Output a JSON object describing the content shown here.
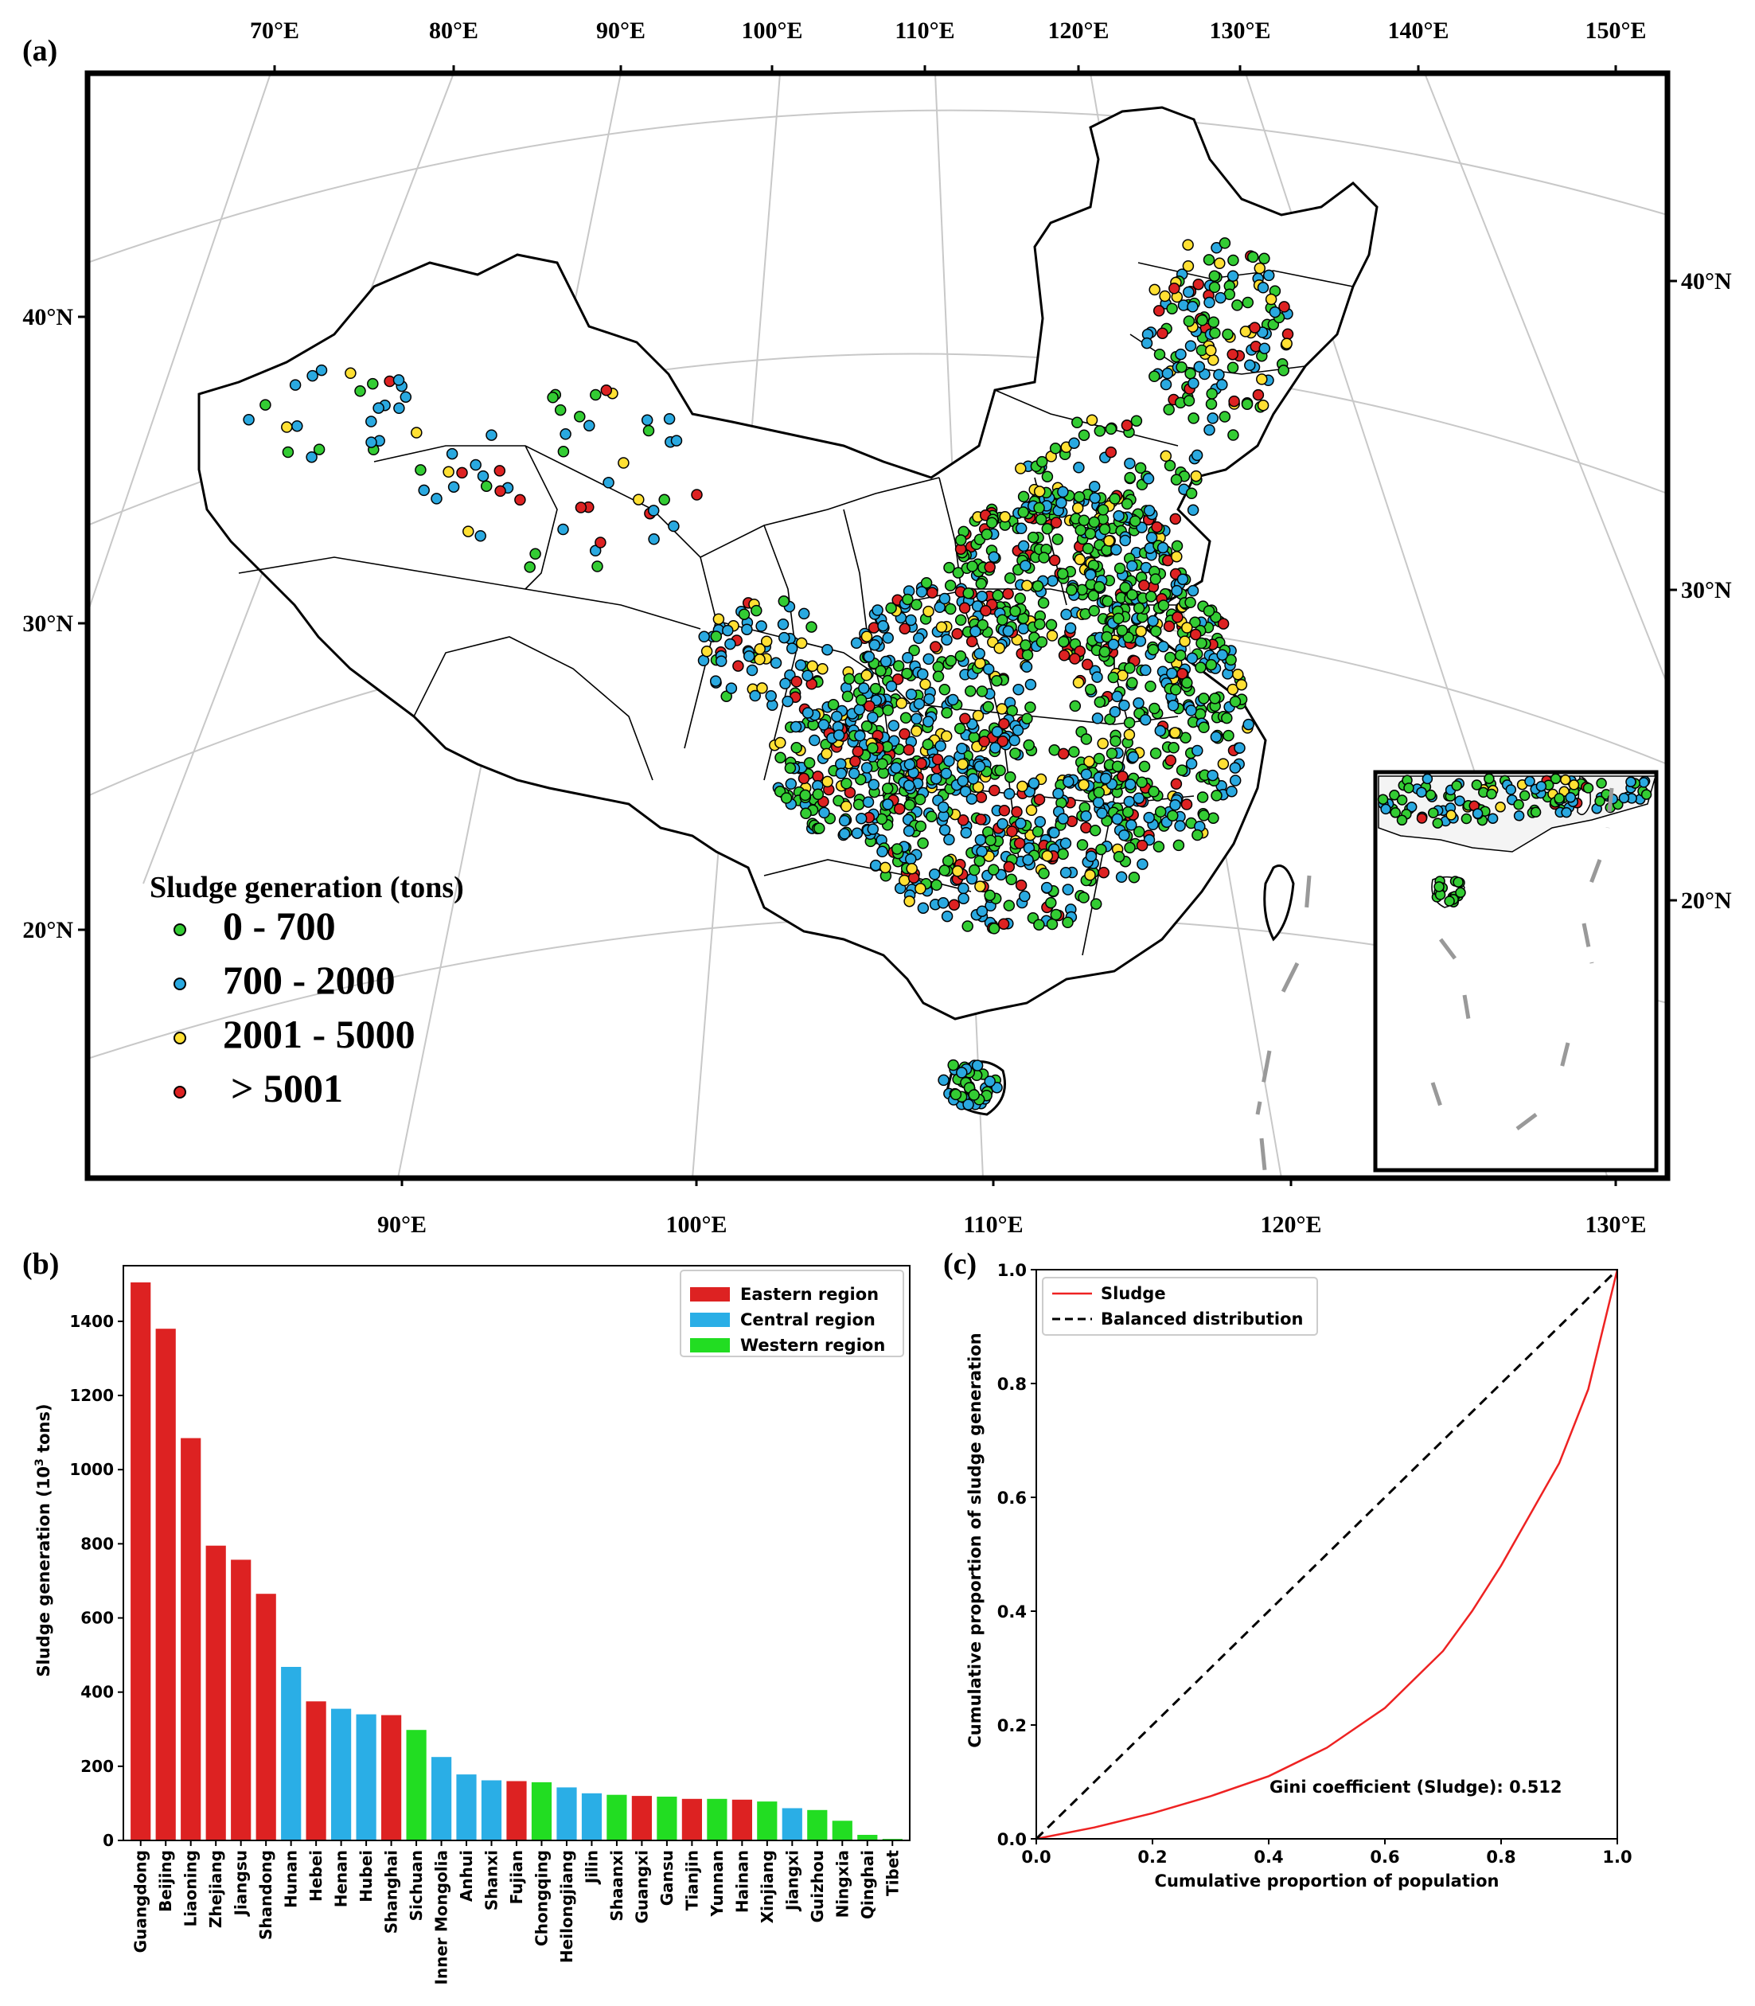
{
  "panel_a": {
    "label": "(a)",
    "top_lon_ticks": [
      "70°E",
      "80°E",
      "90°E",
      "100°E",
      "110°E",
      "120°E",
      "130°E",
      "140°E",
      "150°E"
    ],
    "bottom_lon_ticks": [
      "90°E",
      "100°E",
      "110°E",
      "120°E",
      "130°E"
    ],
    "left_lat_ticks": [
      "40°N",
      "30°N",
      "20°N"
    ],
    "right_lat_ticks": [
      "40°N",
      "30°N",
      "20°N"
    ],
    "legend": {
      "title": "Sludge generation  (tons)",
      "items": [
        {
          "label": "0 - 700",
          "color": "#33cc33"
        },
        {
          "label": "700 - 2000",
          "color": "#2aa9e0"
        },
        {
          "label": "2001 - 5000",
          "color": "#ffe033"
        },
        {
          "label": "> 5001",
          "color": "#dd2222"
        }
      ]
    }
  },
  "panel_b": {
    "label": "(b)",
    "ylabel": "Sludge generation (10³ tons)",
    "legend": [
      {
        "label": "Eastern region",
        "color": "#dd2222"
      },
      {
        "label": "Central region",
        "color": "#2aaee6"
      },
      {
        "label": "Western region",
        "color": "#22dd22"
      }
    ]
  },
  "panel_c": {
    "label": "(c)",
    "xlabel": "Cumulative proportion of population",
    "ylabel": "Cumulative proportion of sludge generation",
    "legend": [
      {
        "label": "Sludge",
        "color": "#ee2222"
      },
      {
        "label": "Balanced distribution",
        "color": "#000000"
      }
    ],
    "annotation": "Gini coefficient (Sludge): 0.512"
  },
  "chart_data": [
    {
      "type": "bar",
      "ylabel": "Sludge generation (10³ tons)",
      "ylim": [
        0,
        1550
      ],
      "yticks": [
        0,
        200,
        400,
        600,
        800,
        1000,
        1200,
        1400
      ],
      "categories": [
        "Guangdong",
        "Beijing",
        "Liaoning",
        "Zhejiang",
        "Jiangsu",
        "Shandong",
        "Hunan",
        "Hebei",
        "Henan",
        "Hubei",
        "Shanghai",
        "Sichuan",
        "Inner Mongolia",
        "Anhui",
        "Shanxi",
        "Fujian",
        "Chongqing",
        "Heilongjiang",
        "Jilin",
        "Shaanxi",
        "Guangxi",
        "Gansu",
        "Tianjin",
        "Yunnan",
        "Hainan",
        "Xinjiang",
        "Jiangxi",
        "Guizhou",
        "Ningxia",
        "Qinghai",
        "Tibet"
      ],
      "values": [
        1505,
        1380,
        1085,
        795,
        757,
        665,
        468,
        375,
        355,
        340,
        338,
        298,
        225,
        178,
        162,
        160,
        157,
        143,
        127,
        123,
        120,
        118,
        112,
        112,
        110,
        105,
        87,
        82,
        53,
        15,
        4
      ],
      "region": [
        "Eastern",
        "Eastern",
        "Eastern",
        "Eastern",
        "Eastern",
        "Eastern",
        "Central",
        "Eastern",
        "Central",
        "Central",
        "Eastern",
        "Western",
        "Central",
        "Central",
        "Central",
        "Eastern",
        "Western",
        "Central",
        "Central",
        "Western",
        "Eastern",
        "Western",
        "Eastern",
        "Western",
        "Eastern",
        "Western",
        "Central",
        "Western",
        "Western",
        "Western",
        "Western"
      ],
      "legend_position": "upper-right"
    },
    {
      "type": "line",
      "xlabel": "Cumulative proportion of population",
      "ylabel": "Cumulative proportion of sludge generation",
      "xlim": [
        0,
        1
      ],
      "ylim": [
        0,
        1
      ],
      "ticks": [
        0.0,
        0.2,
        0.4,
        0.6,
        0.8,
        1.0
      ],
      "series": [
        {
          "name": "Sludge",
          "style": "solid",
          "x": [
            0.0,
            0.1,
            0.2,
            0.3,
            0.4,
            0.5,
            0.6,
            0.7,
            0.75,
            0.8,
            0.85,
            0.9,
            0.95,
            1.0
          ],
          "y": [
            0.0,
            0.02,
            0.045,
            0.075,
            0.11,
            0.16,
            0.23,
            0.33,
            0.4,
            0.48,
            0.57,
            0.66,
            0.79,
            1.0
          ]
        },
        {
          "name": "Balanced distribution",
          "style": "dashed",
          "x": [
            0.0,
            1.0
          ],
          "y": [
            0.0,
            1.0
          ]
        }
      ],
      "legend_position": "upper-left"
    }
  ]
}
